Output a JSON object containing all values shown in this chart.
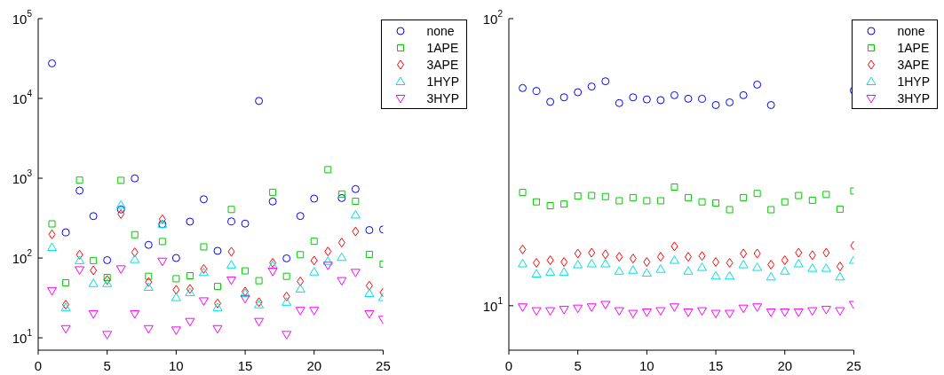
{
  "chart_data": [
    {
      "type": "scatter",
      "x": [
        1,
        2,
        3,
        4,
        5,
        6,
        7,
        8,
        9,
        10,
        11,
        12,
        13,
        14,
        15,
        16,
        17,
        18,
        19,
        20,
        21,
        22,
        23,
        24,
        25
      ],
      "log": "y",
      "xlim": [
        0,
        25
      ],
      "xticks": [
        0,
        5,
        10,
        15,
        20,
        25
      ],
      "ylim": [
        7,
        100000
      ],
      "yticks": [
        {
          "value": 10,
          "label": "10$^{1}$"
        },
        {
          "value": 100,
          "label": "10$^{2}$"
        },
        {
          "value": 1000,
          "label": "10$^{3}$"
        },
        {
          "value": 10000,
          "label": "10$^{4}$"
        },
        {
          "value": 100000,
          "label": "10$^{5}$"
        }
      ],
      "grid": false,
      "legend": "top right",
      "series": [
        {
          "name": "none",
          "color": "#0000ff",
          "marker": "circle",
          "values": [
            27500,
            210,
            700,
            335,
            94,
            406,
            995,
            146,
            265,
            100,
            286,
            545,
            123,
            288,
            270,
            9300,
            511,
            99,
            336,
            555,
            null,
            564,
            731,
            224,
            228
          ]
        },
        {
          "name": "1APE",
          "color": "#00cc00",
          "marker": "square",
          "values": [
            268,
            49,
            946,
            93,
            57,
            940,
            196,
            59,
            161,
            55,
            60,
            138,
            44,
            406,
            69,
            52,
            667,
            59,
            110,
            162,
            1280,
            634,
            514,
            111,
            84
          ]
        },
        {
          "name": "3APE",
          "color": "#ff0000",
          "marker": "diamond",
          "values": [
            198,
            26,
            110,
            70,
            53,
            356,
            118,
            50,
            306,
            40,
            41,
            73,
            27,
            120,
            38,
            28,
            87,
            33,
            51,
            93,
            121,
            156,
            215,
            45,
            37
          ]
        },
        {
          "name": "1HYP",
          "color": "#00e0e0",
          "marker": "triangle",
          "values": [
            136,
            24,
            93,
            48,
            48,
            461,
            96,
            43,
            266,
            32,
            37,
            66,
            24,
            82,
            36,
            26,
            81,
            28,
            41,
            67,
            91,
            102,
            347,
            36,
            32
          ]
        },
        {
          "name": "3HYP",
          "color": "#ff00ff",
          "marker": "triangle_down",
          "values": [
            39,
            13,
            71,
            20,
            11,
            73,
            20,
            13,
            91,
            12.5,
            16,
            29,
            13,
            53,
            31,
            16,
            68,
            11,
            22,
            22,
            81,
            52,
            66,
            20,
            17
          ]
        }
      ]
    },
    {
      "type": "scatter",
      "x": [
        1,
        2,
        3,
        4,
        5,
        6,
        7,
        8,
        9,
        10,
        11,
        12,
        13,
        14,
        15,
        16,
        17,
        18,
        19,
        20,
        21,
        22,
        23,
        24,
        25
      ],
      "log": "y",
      "xlim": [
        0,
        25
      ],
      "xticks": [
        0,
        5,
        10,
        15,
        20,
        25
      ],
      "ylim": [
        7,
        100
      ],
      "yticks": [
        {
          "value": 10,
          "label": "10$^{1}$"
        },
        {
          "value": 100,
          "label": "10$^{2}$"
        }
      ],
      "grid": false,
      "legend": "top right",
      "series": [
        {
          "name": "none",
          "color": "#0000ff",
          "marker": "circle",
          "values": [
            57.3,
            56,
            51.3,
            53.2,
            55.4,
            58,
            60.5,
            50.8,
            53.2,
            52.3,
            52,
            54.1,
            52.6,
            52.6,
            50,
            51.1,
            54.1,
            58.9,
            50,
            null,
            null,
            null,
            null,
            null,
            56.2
          ]
        },
        {
          "name": "1APE",
          "color": "#00cc00",
          "marker": "square",
          "values": [
            24.8,
            23,
            22.3,
            22.6,
            24.1,
            24.2,
            24,
            23.2,
            23.8,
            23.2,
            23.2,
            25.9,
            23.8,
            23,
            22.8,
            21.6,
            23.8,
            24.6,
            21.6,
            23,
            24.2,
            23.3,
            24.4,
            21.7,
            25.1
          ]
        },
        {
          "name": "3APE",
          "color": "#ff0000",
          "marker": "diamond",
          "values": [
            15.7,
            14.1,
            14.4,
            14.2,
            15.2,
            15.3,
            15.1,
            14.8,
            14.6,
            14.2,
            14.8,
            16.1,
            14.8,
            14.9,
            14.2,
            14.1,
            15.2,
            15.2,
            13.9,
            14.4,
            15.3,
            15,
            15.3,
            13.7,
            16.2
          ]
        },
        {
          "name": "1HYP",
          "color": "#00e0e0",
          "marker": "triangle",
          "values": [
            14,
            12.9,
            13.1,
            13.1,
            13.9,
            14,
            14,
            13.2,
            13.3,
            13,
            13.4,
            14.4,
            13.2,
            13.6,
            12.7,
            12.7,
            13.9,
            13.6,
            12.6,
            13.2,
            14,
            13.5,
            13.5,
            12.6,
            14.4
          ]
        },
        {
          "name": "3HYP",
          "color": "#ff00ff",
          "marker": "triangle_down",
          "values": [
            9.9,
            9.6,
            9.6,
            9.7,
            9.8,
            9.9,
            10.1,
            9.6,
            9.4,
            9.5,
            9.6,
            9.9,
            9.5,
            9.6,
            9.4,
            9.4,
            9.8,
            9.9,
            9.5,
            9.5,
            9.5,
            9.6,
            9.7,
            9.6,
            10.1
          ]
        }
      ]
    }
  ]
}
